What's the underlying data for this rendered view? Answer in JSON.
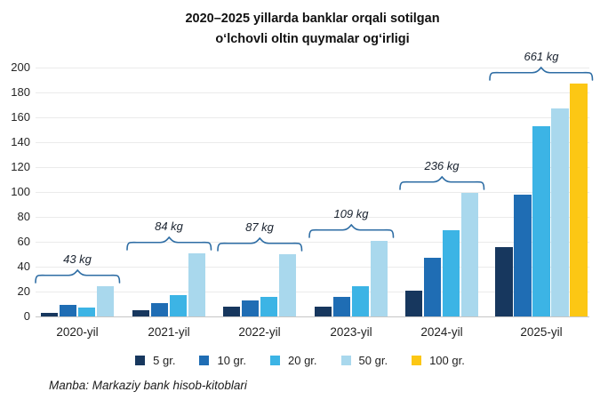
{
  "title": {
    "line1": "2020–2025 yillarda banklar orqali sotilgan",
    "line2": "o‘lchovli oltin quymalar og‘irligi"
  },
  "source": "Manba: Markaziy bank hisob-kitoblari",
  "chart_data": {
    "type": "bar",
    "title": "2020–2025 yillarda banklar orqali sotilgan o‘lchovli oltin quymalar og‘irligi",
    "categories": [
      "2020-yil",
      "2021-yil",
      "2022-yil",
      "2023-yil",
      "2024-yil",
      "2025-yil"
    ],
    "series": [
      {
        "name": "5 gr.",
        "color": "#17375e",
        "values": [
          3,
          5,
          8,
          8,
          21,
          56
        ]
      },
      {
        "name": "10 gr.",
        "color": "#1f6db4",
        "values": [
          9,
          11,
          13,
          16,
          47,
          98
        ]
      },
      {
        "name": "20 gr.",
        "color": "#3cb4e5",
        "values": [
          7,
          17,
          16,
          24,
          69,
          153
        ]
      },
      {
        "name": "50 gr.",
        "color": "#a9d8ed",
        "values": [
          24,
          51,
          50,
          61,
          99,
          167
        ]
      },
      {
        "name": "100 gr.",
        "color": "#fcc714",
        "values": [
          0,
          0,
          0,
          0,
          0,
          187
        ]
      }
    ],
    "annotations": [
      {
        "label": "43 kg",
        "total": 43
      },
      {
        "label": "84 kg",
        "total": 84
      },
      {
        "label": "87 kg",
        "total": 87
      },
      {
        "label": "109 kg",
        "total": 109
      },
      {
        "label": "236 kg",
        "total": 236
      },
      {
        "label": "661 kg",
        "total": 661
      }
    ],
    "ylim": [
      0,
      200
    ],
    "yticks": [
      0,
      20,
      40,
      60,
      80,
      100,
      120,
      140,
      160,
      180,
      200
    ],
    "xlabel": "",
    "ylabel": "",
    "grid": true,
    "legend_position": "bottom",
    "brace_color": "#2e6da4"
  }
}
